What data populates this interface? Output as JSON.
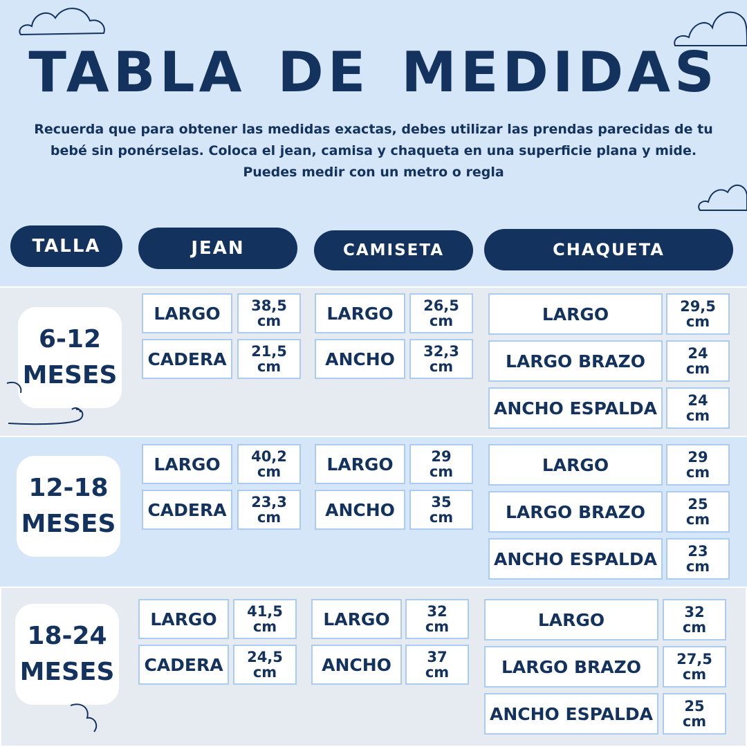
{
  "title": "TABLA DE MEDIDAS",
  "subtitle": {
    "line1": "Recuerda que para obtener las medidas exactas, debes utilizar las prendas parecidas de tu",
    "line2": "bebé sin ponérselas. Coloca el jean, camisa y chaqueta en una superficie plana y mide.",
    "line3": "Puedes medir con un metro o regla"
  },
  "headers": {
    "talla": "TALLA",
    "jean": "JEAN",
    "camiseta": "CAMISETA",
    "chaqueta": "CHAQUETA"
  },
  "sizes": [
    {
      "range": "6-12",
      "unit": "MESES",
      "jean": [
        {
          "label": "LARGO",
          "num": "38,5",
          "u": "cm"
        },
        {
          "label": "CADERA",
          "num": "21,5",
          "u": "cm"
        }
      ],
      "camiseta": [
        {
          "label": "LARGO",
          "num": "26,5",
          "u": "cm"
        },
        {
          "label": "ANCHO",
          "num": "32,3",
          "u": "cm"
        }
      ],
      "chaqueta": [
        {
          "label": "LARGO",
          "num": "29,5",
          "u": "cm"
        },
        {
          "label": "LARGO BRAZO",
          "num": "24",
          "u": "cm"
        },
        {
          "label": "ANCHO ESPALDA",
          "num": "24",
          "u": "cm"
        }
      ]
    },
    {
      "range": "12-18",
      "unit": "MESES",
      "jean": [
        {
          "label": "LARGO",
          "num": "40,2",
          "u": "cm"
        },
        {
          "label": "CADERA",
          "num": "23,3",
          "u": "cm"
        }
      ],
      "camiseta": [
        {
          "label": "LARGO",
          "num": "29",
          "u": "cm"
        },
        {
          "label": "ANCHO",
          "num": "35",
          "u": "cm"
        }
      ],
      "chaqueta": [
        {
          "label": "LARGO",
          "num": "29",
          "u": "cm"
        },
        {
          "label": "LARGO BRAZO",
          "num": "25",
          "u": "cm"
        },
        {
          "label": "ANCHO ESPALDA",
          "num": "23",
          "u": "cm"
        }
      ]
    },
    {
      "range": "18-24",
      "unit": "MESES",
      "jean": [
        {
          "label": "LARGO",
          "num": "41,5",
          "u": "cm"
        },
        {
          "label": "CADERA",
          "num": "24,5",
          "u": "cm"
        }
      ],
      "camiseta": [
        {
          "label": "LARGO",
          "num": "32",
          "u": "cm"
        },
        {
          "label": "ANCHO",
          "num": "37",
          "u": "cm"
        }
      ],
      "chaqueta": [
        {
          "label": "LARGO",
          "num": "32",
          "u": "cm"
        },
        {
          "label": "LARGO BRAZO",
          "num": "27,5",
          "u": "cm"
        },
        {
          "label": "ANCHO ESPALDA",
          "num": "25",
          "u": "cm"
        }
      ]
    }
  ]
}
